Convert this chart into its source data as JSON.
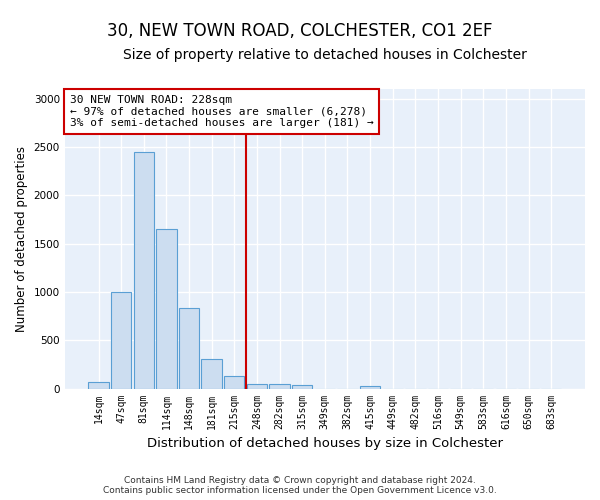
{
  "title": "30, NEW TOWN ROAD, COLCHESTER, CO1 2EF",
  "subtitle": "Size of property relative to detached houses in Colchester",
  "xlabel": "Distribution of detached houses by size in Colchester",
  "ylabel": "Number of detached properties",
  "bar_color": "#ccddf0",
  "bar_edge_color": "#5a9fd4",
  "background_color": "#e8f0fa",
  "grid_color": "#ffffff",
  "categories": [
    "14sqm",
    "47sqm",
    "81sqm",
    "114sqm",
    "148sqm",
    "181sqm",
    "215sqm",
    "248sqm",
    "282sqm",
    "315sqm",
    "349sqm",
    "382sqm",
    "415sqm",
    "449sqm",
    "482sqm",
    "516sqm",
    "549sqm",
    "583sqm",
    "616sqm",
    "650sqm",
    "683sqm"
  ],
  "values": [
    65,
    1000,
    2450,
    1650,
    830,
    310,
    130,
    50,
    50,
    40,
    0,
    0,
    30,
    0,
    0,
    0,
    0,
    0,
    0,
    0,
    0
  ],
  "vline_index": 6.5,
  "annotation_text": "30 NEW TOWN ROAD: 228sqm\n← 97% of detached houses are smaller (6,278)\n3% of semi-detached houses are larger (181) →",
  "annotation_box_color": "#ffffff",
  "annotation_box_edge": "#cc0000",
  "vline_color": "#cc0000",
  "footer": "Contains HM Land Registry data © Crown copyright and database right 2024.\nContains public sector information licensed under the Open Government Licence v3.0.",
  "ylim": [
    0,
    3100
  ],
  "title_fontsize": 12,
  "subtitle_fontsize": 10,
  "tick_fontsize": 7,
  "ylabel_fontsize": 8.5,
  "xlabel_fontsize": 9.5
}
